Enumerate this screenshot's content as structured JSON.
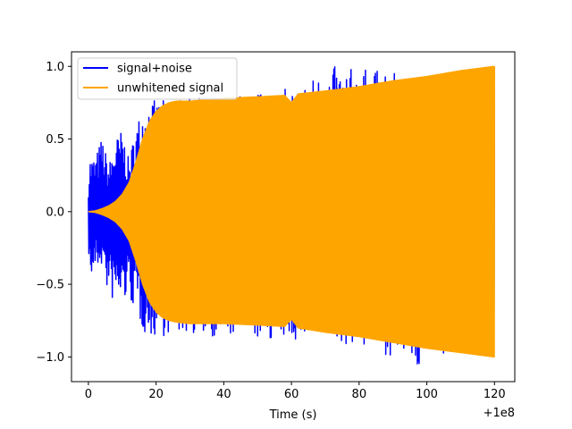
{
  "chart_data": {
    "type": "line",
    "title": "",
    "xlabel": "Time (s)",
    "ylabel": "",
    "x_offset_label": "+1e8",
    "xlim": [
      -5,
      126
    ],
    "ylim": [
      -1.17,
      1.1
    ],
    "xticks": [
      0,
      20,
      40,
      60,
      80,
      100,
      120
    ],
    "xtick_labels": [
      "0",
      "20",
      "40",
      "60",
      "80",
      "100",
      "120"
    ],
    "yticks": [
      1.0,
      0.5,
      0.0,
      -0.5,
      -1.0
    ],
    "ytick_labels": [
      "1.0",
      "0.5",
      "0.0",
      "−0.5",
      "−1.0"
    ],
    "grid": false,
    "legend_position": "top-left",
    "series": [
      {
        "name": "signal+noise",
        "color": "#0000ff",
        "envelope_x": [
          0,
          0.5,
          2,
          4,
          6,
          8,
          10,
          12,
          14,
          16,
          18,
          20,
          25,
          30,
          40,
          50,
          60,
          72,
          84,
          98,
          100,
          110,
          120
        ],
        "envelope_upper": [
          0.22,
          0.38,
          0.37,
          0.52,
          0.32,
          0.5,
          0.57,
          0.35,
          0.6,
          0.73,
          0.78,
          0.76,
          0.78,
          0.78,
          0.8,
          0.82,
          0.85,
          1.0,
          0.98,
          0.92,
          0.95,
          0.97,
          1.0
        ],
        "envelope_lower": [
          -0.23,
          -0.5,
          -0.4,
          -0.37,
          -0.6,
          -0.63,
          -0.62,
          -0.6,
          -0.7,
          -0.82,
          -0.88,
          -0.86,
          -0.85,
          -0.84,
          -0.87,
          -0.88,
          -0.89,
          -0.9,
          -0.95,
          -1.07,
          -0.98,
          -1.0,
          -1.0
        ]
      },
      {
        "name": "unwhitened signal",
        "color": "#ffa500",
        "envelope_x": [
          0,
          2,
          4,
          6,
          8,
          10,
          12,
          14,
          16,
          18,
          20,
          22,
          24,
          26,
          30,
          40,
          50,
          58,
          60,
          62,
          70,
          80,
          90,
          100,
          110,
          120
        ],
        "envelope_upper": [
          0.0,
          0.005,
          0.02,
          0.04,
          0.07,
          0.12,
          0.2,
          0.34,
          0.5,
          0.62,
          0.69,
          0.73,
          0.75,
          0.76,
          0.76,
          0.78,
          0.79,
          0.8,
          0.75,
          0.81,
          0.83,
          0.86,
          0.9,
          0.93,
          0.97,
          1.0
        ],
        "envelope_lower": [
          0.0,
          -0.005,
          -0.02,
          -0.04,
          -0.07,
          -0.12,
          -0.2,
          -0.34,
          -0.5,
          -0.62,
          -0.69,
          -0.73,
          -0.75,
          -0.76,
          -0.77,
          -0.77,
          -0.78,
          -0.79,
          -0.74,
          -0.8,
          -0.83,
          -0.86,
          -0.9,
          -0.94,
          -0.97,
          -1.0
        ]
      }
    ]
  }
}
